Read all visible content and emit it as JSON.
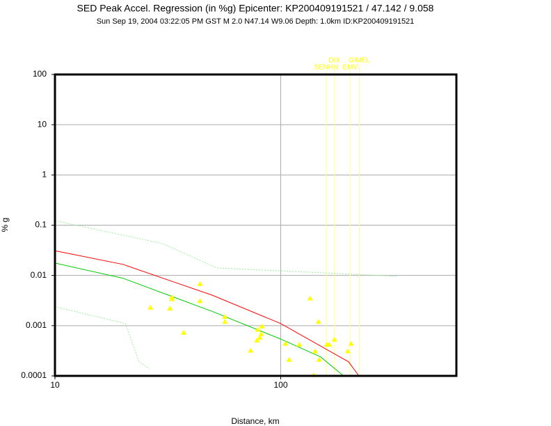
{
  "chart_data": {
    "type": "scatter",
    "title": "SED Peak Accel. Regression (in %g) Epicenter: KP200409191521 / 47.142 / 9.058",
    "subtitle": "Sun Sep 19, 2004 03:22:05 PM GST   M 2.0   N47.14 W9.06   Depth: 1.0km   ID:KP200409191521",
    "x_label": "Distance, km",
    "y_label": "% g",
    "xscale": "log",
    "yscale": "log",
    "grid": true,
    "xlim": [
      10,
      600
    ],
    "ylim": [
      0.0001,
      100
    ],
    "xticks": [
      10,
      100
    ],
    "yticks": [
      100,
      10,
      1,
      0.1,
      0.01,
      0.001,
      0.0001
    ],
    "points": {
      "color": "#ffff00",
      "x": [
        26.5,
        32.3,
        33.0,
        33.0,
        37.2,
        43.9,
        43.9,
        56.6,
        56.6,
        73.6,
        79.1,
        82.6,
        82.0,
        80.8,
        78.5,
        105,
        109,
        121,
        135,
        147,
        142,
        148,
        160,
        164,
        173,
        198,
        205,
        140
      ],
      "y": [
        0.0023,
        0.0022,
        0.0037,
        0.0034,
        0.00073,
        0.0068,
        0.0031,
        0.0015,
        0.0012,
        0.00032,
        0.00083,
        0.00097,
        0.00068,
        0.00058,
        0.00051,
        0.00044,
        0.00021,
        0.00042,
        0.0035,
        0.0012,
        0.00031,
        0.00021,
        0.00042,
        0.00042,
        0.00053,
        0.00031,
        0.00044,
        0.000104
      ]
    },
    "lines": [
      {
        "color": "#ff0000",
        "dash": false,
        "x": [
          10,
          20,
          50,
          100,
          200,
          222
        ],
        "y": [
          0.031,
          0.0166,
          0.004,
          0.0011,
          0.00019,
          0.0001
        ]
      },
      {
        "color": "#00cc00",
        "dash": false,
        "x": [
          10,
          20,
          50,
          100,
          150,
          190
        ],
        "y": [
          0.0176,
          0.0088,
          0.0019,
          0.00054,
          0.00024,
          0.0001
        ]
      },
      {
        "color": "#99ee99",
        "dash": true,
        "x": [
          10,
          30,
          52,
          330
        ],
        "y": [
          0.123,
          0.043,
          0.0141,
          0.0096
        ]
      },
      {
        "color": "#99ee99",
        "dash": true,
        "x": [
          10,
          20.5,
          23.6,
          26.3
        ],
        "y": [
          0.0024,
          0.0011,
          0.00019,
          0.000138
        ]
      }
    ],
    "stations": {
      "color": "#ffff99",
      "names": [
        "SENHN",
        "DIX",
        "EMV",
        "GIMEL"
      ],
      "x": [
        159,
        173,
        203,
        223
      ]
    }
  }
}
